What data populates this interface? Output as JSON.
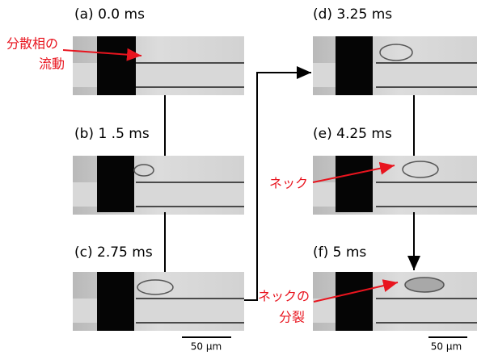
{
  "panels": [
    {
      "label": "(a) 0.0 ms"
    },
    {
      "label": "(b) 1 .5 ms"
    },
    {
      "label": "(c) 2.75 ms"
    },
    {
      "label": "(d)  3.25 ms"
    },
    {
      "label": "(e) 4.25 ms"
    },
    {
      "label": "(f) 5 ms"
    }
  ],
  "annotations": {
    "dispersed_flow": [
      "分散相の",
      "流動"
    ],
    "neck": "ネック",
    "neck_break": [
      "ネックの",
      "分裂"
    ]
  },
  "scale_bars": [
    "50 μm",
    "50 μm"
  ]
}
